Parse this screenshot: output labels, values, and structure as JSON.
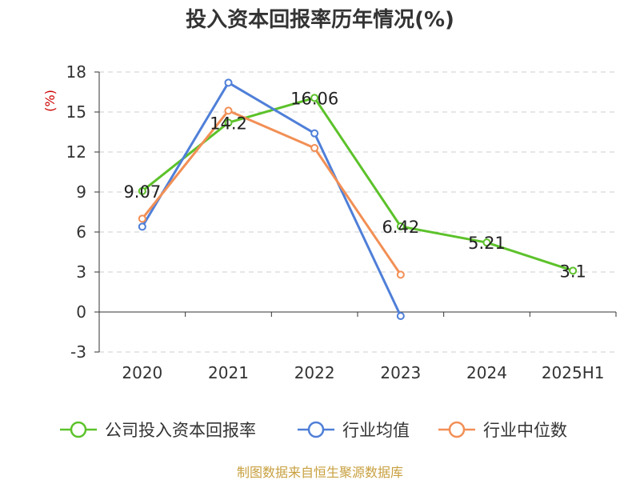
{
  "chart_data": {
    "type": "line",
    "title": "投入资本回报率历年情况(%)",
    "ylabel": "(%)",
    "xlabel": "",
    "categories": [
      "2020",
      "2021",
      "2022",
      "2023",
      "2024",
      "2025H1"
    ],
    "ylim": [
      -3,
      18
    ],
    "yticks": [
      -3,
      0,
      3,
      6,
      9,
      12,
      15,
      18
    ],
    "grid": true,
    "legend_position": "bottom",
    "series": [
      {
        "name": "公司投入资本回报率",
        "color": "#5cc22a",
        "values": [
          9.07,
          14.2,
          16.06,
          6.42,
          5.21,
          3.1
        ],
        "labels": [
          "9.07",
          "14.2",
          "16.06",
          "6.42",
          "5.21",
          "3.1"
        ]
      },
      {
        "name": "行业均值",
        "color": "#4f7fd8",
        "values": [
          6.4,
          17.2,
          13.4,
          -0.3,
          null,
          null
        ]
      },
      {
        "name": "行业中位数",
        "color": "#f28f55",
        "values": [
          7.0,
          15.1,
          12.3,
          2.8,
          null,
          null
        ]
      }
    ]
  },
  "source": "制图数据来自恒生聚源数据库"
}
